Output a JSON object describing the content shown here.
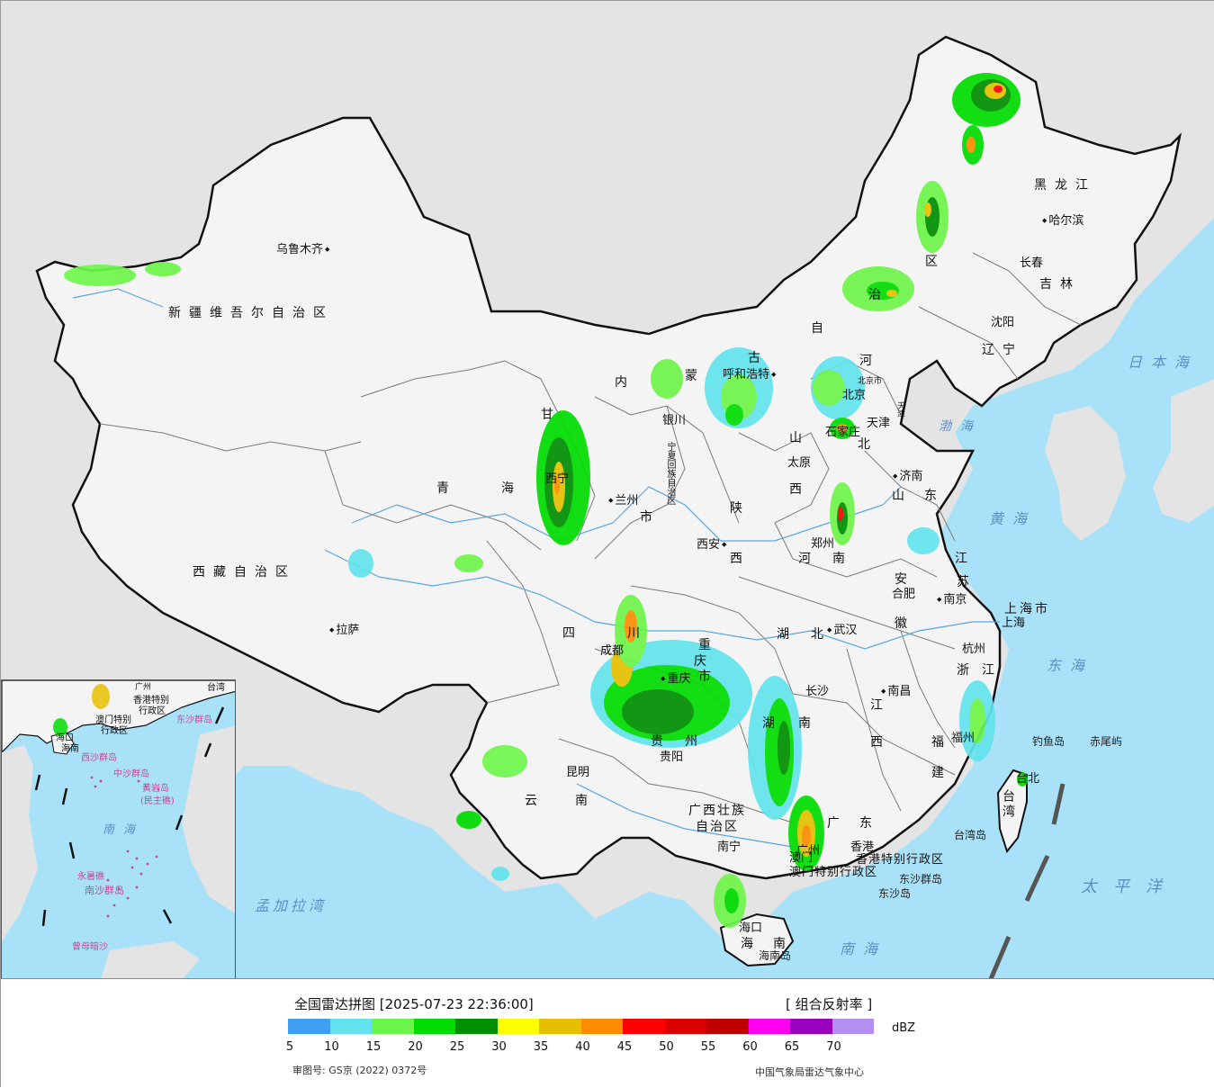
{
  "colors": {
    "ocean": "#a9e2f8",
    "land_china": "#f4f4f4",
    "land_other": "#e4e4e4",
    "border": "#111111",
    "river": "#5aa6e0"
  },
  "labels": {
    "provinces": {
      "xinjiang": "新疆维吾尔自治区",
      "xizang": "西藏自治区",
      "qinghai_a": "青",
      "qinghai_b": "海",
      "gansu": "甘",
      "sichuan_a": "四",
      "sichuan_b": "川",
      "yunnan_a": "云",
      "yunnan_b": "南",
      "neimeng_a": "内",
      "neimeng_b": "蒙",
      "neimeng_c": "古",
      "neimeng_d": "自",
      "neimeng_e": "治",
      "neimeng_f": "区",
      "heilongjiang": "黑龙江",
      "jilin": "吉林",
      "liaoning": "辽宁",
      "hebei_a": "河",
      "hebei_b": "北",
      "shanxi_a": "山",
      "shanxi_b": "西",
      "shaanxi_a": "陕",
      "shaanxi_b": "西",
      "henan_a": "河",
      "henan_b": "南",
      "shandong_a": "山",
      "shandong_b": "东",
      "jiangsu_a": "江",
      "jiangsu_b": "苏",
      "anhui_a": "安",
      "anhui_b": "徽",
      "hubei_a": "湖",
      "hubei_b": "北",
      "hunan_a": "湖",
      "hunan_b": "南",
      "jiangxi_a": "江",
      "jiangxi_b": "西",
      "zhejiang_a": "浙",
      "zhejiang_b": "江",
      "fujian_a": "福",
      "fujian_b": "建",
      "guangdong_a": "广",
      "guangdong_b": "东",
      "guangxi_a": "广西壮族",
      "guangxi_b": "自治区",
      "guizhou_a": "贵",
      "guizhou_b": "州",
      "chongqing_a": "重",
      "chongqing_b": "庆",
      "chongqing_c": "市",
      "hainan_a": "海",
      "hainan_b": "南",
      "ningxia": "宁夏回族自治区",
      "gansu_city": "市",
      "taiwan": "台湾",
      "shanghai": "上海市",
      "beijing": "北京市",
      "tianjin": "天津",
      "hongkong": "香港特别行政区",
      "macau": "澳门特别行政区"
    },
    "cities": {
      "urumqi": "乌鲁木齐",
      "lhasa": "拉萨",
      "xining": "西宁",
      "lanzhou": "兰州",
      "yinchuan": "银川",
      "hohhot": "呼和浩特",
      "beijing": "北京",
      "tianjin": "天津",
      "shijiazhuang": "石家庄",
      "taiyuan": "太原",
      "jinan": "济南",
      "xian": "西安",
      "zhengzhou": "郑州",
      "hefei": "合肥",
      "nanjing": "南京",
      "shanghai": "上海",
      "hangzhou": "杭州",
      "wuhan": "武汉",
      "chengdu": "成都",
      "chongqing": "重庆",
      "changsha": "长沙",
      "nanchang": "南昌",
      "fuzhou": "福州",
      "taipei": "台北",
      "guiyang": "贵阳",
      "kunming": "昆明",
      "nanning": "南宁",
      "guangzhou": "广州",
      "hongkong": "香港",
      "macau": "澳门",
      "haikou": "海口",
      "harbin": "哈尔滨",
      "changchun": "长春",
      "shenyang": "沈阳"
    },
    "seas": {
      "japan_sea": "日本海",
      "bohai": "渤海",
      "yellow_sea": "黄海",
      "east_sea": "东海",
      "south_sea": "南海",
      "pacific": "太平洋",
      "bengal": "孟加拉湾"
    },
    "islands": {
      "diaoyu": "钓鱼岛",
      "chiwei": "赤尾屿",
      "taiwan_island": "台湾岛",
      "hainan_island": "海南岛",
      "dongsha_islands": "东沙群岛",
      "dongsha_island": "东沙岛"
    },
    "inset": {
      "guangzhou": "广州",
      "taiwan": "台湾",
      "hk": "香港特别",
      "hk2": "行政区",
      "macau": "澳门特别",
      "macau2": "行政区",
      "dongsha": "东沙群岛",
      "hainan": "海南",
      "haikou": "海口",
      "xisha": "西沙群岛",
      "zhongsha": "中沙群岛",
      "huangyan": "黄岩岛",
      "huangyan2": "(民主礁)",
      "nanhai": "南海",
      "nansha": "南沙群岛",
      "yongshu": "永暑礁",
      "zengmu": "曾母暗沙"
    }
  },
  "legend": {
    "title": "全国雷达拼图 [2025-07-23 22:36:00]",
    "product": "[ 组合反射率 ]",
    "unit": "dBZ",
    "ticks": [
      "5",
      "10",
      "15",
      "20",
      "25",
      "30",
      "35",
      "40",
      "45",
      "50",
      "55",
      "60",
      "65",
      "70"
    ],
    "colors": [
      "#3f9ff0",
      "#63e3ed",
      "#6ef54a",
      "#00dc00",
      "#008f00",
      "#ffff00",
      "#e6bf00",
      "#ff8c00",
      "#ff0000",
      "#d90000",
      "#bd0000",
      "#ff00f0",
      "#9900bd",
      "#b38ff0"
    ],
    "approval": "审图号: GS京 (2022) 0372号",
    "source": "中国气象局雷达气象中心"
  }
}
